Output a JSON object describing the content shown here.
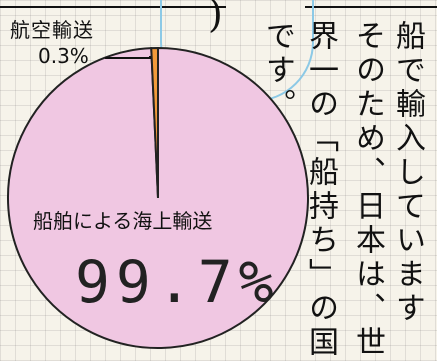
{
  "pie": {
    "air_label": "航空輸送",
    "air_pct": "0.3%",
    "sea_label": "船舶による海上輸送",
    "sea_pct": "99.7%",
    "colors": {
      "sea": "#f0c7e2",
      "air": "#f29a3a",
      "outline": "#222222"
    }
  },
  "chart_data": {
    "type": "pie",
    "categories": [
      "航空輸送",
      "船舶による海上輸送"
    ],
    "values": [
      0.3,
      99.7
    ]
  },
  "text_columns": [
    "船で輸入しています",
    "そのため、日本は、世",
    "界一の「船持ち」の国",
    "です。"
  ]
}
